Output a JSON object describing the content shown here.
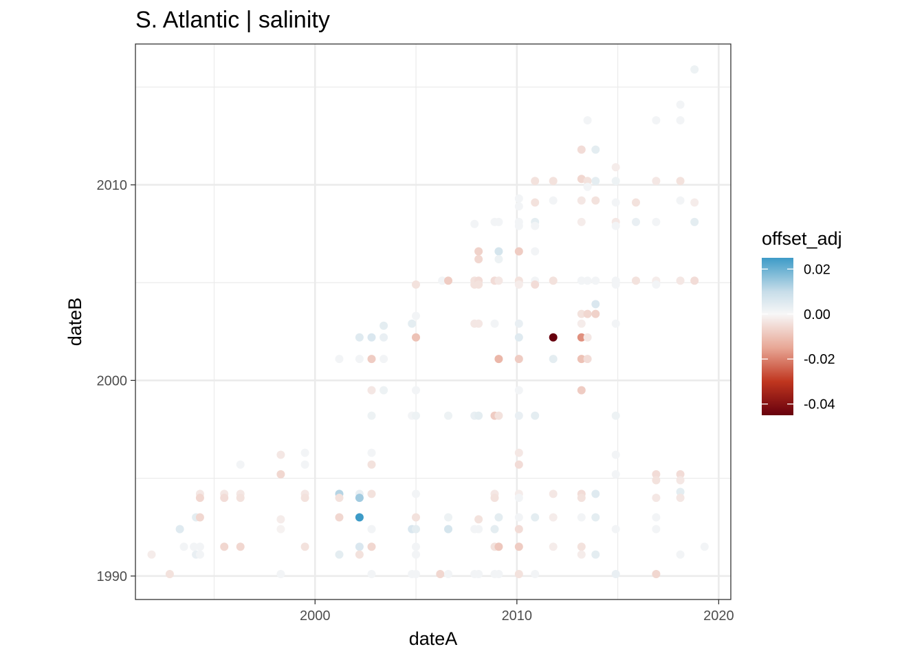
{
  "chart_data": {
    "type": "scatter",
    "title": "S. Atlantic | salinity",
    "xlabel": "dateA",
    "ylabel": "dateB",
    "x_ticks": [
      2000,
      2010,
      2020
    ],
    "y_ticks": [
      1990,
      2000,
      2010
    ],
    "xlim": [
      1991.1,
      2020.6
    ],
    "ylim": [
      1988.8,
      2017.2
    ],
    "grid": true,
    "legend": {
      "title": "offset_adj",
      "position": "right",
      "ticks": [
        0.02,
        0.0,
        -0.02,
        -0.04
      ],
      "tick_labels": [
        "0.02",
        "0.00",
        "-0.02",
        "-0.04"
      ],
      "range": [
        -0.045,
        0.025
      ],
      "colors": [
        "#67000d",
        "#c0361f",
        "#e8a796",
        "#f7f7f7",
        "#c7dde9",
        "#3d9bc7"
      ],
      "color_stops": [
        -0.045,
        -0.03,
        -0.015,
        0.0,
        0.01,
        0.025
      ]
    },
    "points": [
      {
        "x": 1991.9,
        "y": 1991.1,
        "v": -0.002
      },
      {
        "x": 1992.8,
        "y": 1990.1,
        "v": -0.004
      },
      {
        "x": 1993.3,
        "y": 1992.4,
        "v": 0.005
      },
      {
        "x": 1993.5,
        "y": 1991.5,
        "v": 0.001
      },
      {
        "x": 1994.0,
        "y": 1991.5,
        "v": 0.001
      },
      {
        "x": 1994.1,
        "y": 1993.0,
        "v": 0.004
      },
      {
        "x": 1994.1,
        "y": 1991.1,
        "v": 0.003
      },
      {
        "x": 1994.3,
        "y": 1993.0,
        "v": -0.006
      },
      {
        "x": 1994.3,
        "y": 1991.1,
        "v": 0.001
      },
      {
        "x": 1994.3,
        "y": 1994.2,
        "v": -0.003
      },
      {
        "x": 1994.3,
        "y": 1994.0,
        "v": -0.006
      },
      {
        "x": 1994.3,
        "y": 1991.5,
        "v": 0.001
      },
      {
        "x": 1995.5,
        "y": 1994.2,
        "v": -0.003
      },
      {
        "x": 1995.5,
        "y": 1994.0,
        "v": -0.005
      },
      {
        "x": 1995.5,
        "y": 1991.5,
        "v": -0.006
      },
      {
        "x": 1996.3,
        "y": 1994.2,
        "v": -0.003
      },
      {
        "x": 1996.3,
        "y": 1994.0,
        "v": -0.004
      },
      {
        "x": 1996.3,
        "y": 1995.7,
        "v": 0.001
      },
      {
        "x": 1996.3,
        "y": 1991.5,
        "v": -0.006
      },
      {
        "x": 1998.3,
        "y": 1996.2,
        "v": -0.003
      },
      {
        "x": 1998.3,
        "y": 1995.2,
        "v": -0.006
      },
      {
        "x": 1998.3,
        "y": 1992.9,
        "v": -0.002
      },
      {
        "x": 1998.3,
        "y": 1992.4,
        "v": -0.001
      },
      {
        "x": 1998.3,
        "y": 1990.1,
        "v": 0.001
      },
      {
        "x": 1999.5,
        "y": 1996.3,
        "v": 0.001
      },
      {
        "x": 1999.5,
        "y": 1995.7,
        "v": 0.001
      },
      {
        "x": 1999.5,
        "y": 1994.2,
        "v": -0.003
      },
      {
        "x": 1999.5,
        "y": 1994.0,
        "v": -0.004
      },
      {
        "x": 1999.5,
        "y": 1991.5,
        "v": -0.004
      },
      {
        "x": 2001.2,
        "y": 2001.1,
        "v": 0.001
      },
      {
        "x": 2001.2,
        "y": 1994.2,
        "v": 0.012
      },
      {
        "x": 2001.2,
        "y": 1994.0,
        "v": -0.004
      },
      {
        "x": 2001.2,
        "y": 1993.0,
        "v": -0.006
      },
      {
        "x": 2001.2,
        "y": 1991.1,
        "v": 0.004
      },
      {
        "x": 2002.2,
        "y": 2002.2,
        "v": 0.005
      },
      {
        "x": 2002.2,
        "y": 2001.1,
        "v": 0.001
      },
      {
        "x": 2002.2,
        "y": 1994.2,
        "v": 0.003
      },
      {
        "x": 2002.2,
        "y": 1994.0,
        "v": 0.014
      },
      {
        "x": 2002.2,
        "y": 1993.0,
        "v": 0.025
      },
      {
        "x": 2002.2,
        "y": 1991.5,
        "v": 0.006
      },
      {
        "x": 2002.2,
        "y": 1991.1,
        "v": -0.004
      },
      {
        "x": 2002.8,
        "y": 2002.2,
        "v": 0.006
      },
      {
        "x": 2002.8,
        "y": 2001.1,
        "v": -0.008
      },
      {
        "x": 2002.8,
        "y": 1999.5,
        "v": -0.003
      },
      {
        "x": 2002.8,
        "y": 1998.2,
        "v": 0.002
      },
      {
        "x": 2002.8,
        "y": 1996.3,
        "v": 0.001
      },
      {
        "x": 2002.8,
        "y": 1995.7,
        "v": -0.004
      },
      {
        "x": 2002.8,
        "y": 1994.2,
        "v": -0.004
      },
      {
        "x": 2002.8,
        "y": 1992.4,
        "v": 0.001
      },
      {
        "x": 2002.8,
        "y": 1991.5,
        "v": -0.006
      },
      {
        "x": 2002.8,
        "y": 1990.1,
        "v": 0.001
      },
      {
        "x": 2003.4,
        "y": 2002.8,
        "v": 0.004
      },
      {
        "x": 2003.4,
        "y": 2002.2,
        "v": 0.003
      },
      {
        "x": 2003.4,
        "y": 2001.1,
        "v": 0.001
      },
      {
        "x": 2003.4,
        "y": 1999.5,
        "v": 0.002
      },
      {
        "x": 2004.8,
        "y": 2002.9,
        "v": 0.004
      },
      {
        "x": 2004.8,
        "y": 1998.2,
        "v": 0.001
      },
      {
        "x": 2004.8,
        "y": 1992.4,
        "v": 0.006
      },
      {
        "x": 2004.8,
        "y": 1990.1,
        "v": 0.001
      },
      {
        "x": 2005.0,
        "y": 2004.9,
        "v": -0.004
      },
      {
        "x": 2005.0,
        "y": 2003.3,
        "v": 0.001
      },
      {
        "x": 2005.0,
        "y": 2002.2,
        "v": -0.01
      },
      {
        "x": 2005.0,
        "y": 1999.5,
        "v": 0.001
      },
      {
        "x": 2005.0,
        "y": 1998.2,
        "v": 0.002
      },
      {
        "x": 2005.0,
        "y": 1994.2,
        "v": 0.001
      },
      {
        "x": 2005.0,
        "y": 1993.0,
        "v": -0.004
      },
      {
        "x": 2005.0,
        "y": 1992.4,
        "v": 0.004
      },
      {
        "x": 2005.0,
        "y": 1991.5,
        "v": 0.001
      },
      {
        "x": 2005.0,
        "y": 1991.1,
        "v": 0.001
      },
      {
        "x": 2005.0,
        "y": 1990.1,
        "v": 0.001
      },
      {
        "x": 2006.2,
        "y": 1990.1,
        "v": -0.006
      },
      {
        "x": 2006.3,
        "y": 2005.1,
        "v": 0.001
      },
      {
        "x": 2006.6,
        "y": 2005.1,
        "v": -0.008
      },
      {
        "x": 2006.6,
        "y": 1998.2,
        "v": 0.002
      },
      {
        "x": 2006.6,
        "y": 1993.0,
        "v": 0.002
      },
      {
        "x": 2006.6,
        "y": 1992.4,
        "v": 0.007
      },
      {
        "x": 2006.6,
        "y": 1990.1,
        "v": 0.001
      },
      {
        "x": 2007.9,
        "y": 2008.0,
        "v": 0.001
      },
      {
        "x": 2007.9,
        "y": 2005.1,
        "v": -0.004
      },
      {
        "x": 2007.9,
        "y": 2004.9,
        "v": -0.004
      },
      {
        "x": 2007.9,
        "y": 2002.9,
        "v": -0.003
      },
      {
        "x": 2007.9,
        "y": 1998.2,
        "v": 0.003
      },
      {
        "x": 2007.9,
        "y": 1992.4,
        "v": 0.001
      },
      {
        "x": 2007.9,
        "y": 1990.1,
        "v": 0.001
      },
      {
        "x": 2008.1,
        "y": 2006.6,
        "v": -0.007
      },
      {
        "x": 2008.1,
        "y": 2006.2,
        "v": -0.006
      },
      {
        "x": 2008.1,
        "y": 2005.1,
        "v": -0.005
      },
      {
        "x": 2008.1,
        "y": 2004.9,
        "v": -0.004
      },
      {
        "x": 2008.1,
        "y": 2002.9,
        "v": -0.003
      },
      {
        "x": 2008.1,
        "y": 1998.2,
        "v": 0.004
      },
      {
        "x": 2008.1,
        "y": 1992.9,
        "v": -0.004
      },
      {
        "x": 2008.1,
        "y": 1992.4,
        "v": 0.001
      },
      {
        "x": 2008.1,
        "y": 1990.1,
        "v": 0.001
      },
      {
        "x": 2008.9,
        "y": 2008.1,
        "v": 0.001
      },
      {
        "x": 2008.9,
        "y": 2005.1,
        "v": -0.005
      },
      {
        "x": 2008.9,
        "y": 2002.9,
        "v": 0.001
      },
      {
        "x": 2008.9,
        "y": 1998.2,
        "v": -0.008
      },
      {
        "x": 2008.9,
        "y": 1994.2,
        "v": -0.003
      },
      {
        "x": 2008.9,
        "y": 1994.0,
        "v": -0.004
      },
      {
        "x": 2008.9,
        "y": 1992.4,
        "v": 0.004
      },
      {
        "x": 2008.9,
        "y": 1991.5,
        "v": -0.004
      },
      {
        "x": 2008.9,
        "y": 1990.1,
        "v": 0.001
      },
      {
        "x": 2009.1,
        "y": 2008.1,
        "v": 0.001
      },
      {
        "x": 2009.1,
        "y": 2006.6,
        "v": 0.007
      },
      {
        "x": 2009.1,
        "y": 2006.2,
        "v": 0.002
      },
      {
        "x": 2009.1,
        "y": 2005.1,
        "v": -0.003
      },
      {
        "x": 2009.1,
        "y": 2001.1,
        "v": -0.012
      },
      {
        "x": 2009.1,
        "y": 1998.2,
        "v": -0.004
      },
      {
        "x": 2009.1,
        "y": 1993.0,
        "v": 0.004
      },
      {
        "x": 2009.1,
        "y": 1991.5,
        "v": -0.009
      },
      {
        "x": 2009.1,
        "y": 1990.1,
        "v": 0.001
      },
      {
        "x": 2010.1,
        "y": 2009.3,
        "v": 0.001
      },
      {
        "x": 2010.1,
        "y": 2008.9,
        "v": 0.001
      },
      {
        "x": 2010.1,
        "y": 2008.1,
        "v": 0.001
      },
      {
        "x": 2010.1,
        "y": 2007.9,
        "v": 0.001
      },
      {
        "x": 2010.1,
        "y": 2006.6,
        "v": -0.008
      },
      {
        "x": 2010.1,
        "y": 2005.1,
        "v": -0.004
      },
      {
        "x": 2010.1,
        "y": 2004.9,
        "v": -0.002
      },
      {
        "x": 2010.1,
        "y": 2002.9,
        "v": 0.003
      },
      {
        "x": 2010.1,
        "y": 2002.2,
        "v": 0.005
      },
      {
        "x": 2010.1,
        "y": 2001.1,
        "v": -0.008
      },
      {
        "x": 2010.1,
        "y": 1999.5,
        "v": 0.001
      },
      {
        "x": 2010.1,
        "y": 1998.2,
        "v": 0.003
      },
      {
        "x": 2010.1,
        "y": 1996.3,
        "v": -0.003
      },
      {
        "x": 2010.1,
        "y": 1995.7,
        "v": -0.005
      },
      {
        "x": 2010.1,
        "y": 1994.2,
        "v": -0.002
      },
      {
        "x": 2010.1,
        "y": 1994.0,
        "v": 0.001
      },
      {
        "x": 2010.1,
        "y": 1993.0,
        "v": 0.001
      },
      {
        "x": 2010.1,
        "y": 1992.4,
        "v": -0.005
      },
      {
        "x": 2010.1,
        "y": 1991.5,
        "v": -0.008
      },
      {
        "x": 2010.1,
        "y": 1990.1,
        "v": -0.004
      },
      {
        "x": 2010.9,
        "y": 2010.2,
        "v": -0.004
      },
      {
        "x": 2010.9,
        "y": 2009.1,
        "v": -0.004
      },
      {
        "x": 2010.9,
        "y": 2008.1,
        "v": 0.004
      },
      {
        "x": 2010.9,
        "y": 2007.9,
        "v": 0.001
      },
      {
        "x": 2010.9,
        "y": 2006.6,
        "v": 0.001
      },
      {
        "x": 2010.9,
        "y": 2005.1,
        "v": 0.001
      },
      {
        "x": 2010.9,
        "y": 2004.9,
        "v": -0.005
      },
      {
        "x": 2010.9,
        "y": 1998.2,
        "v": 0.004
      },
      {
        "x": 2010.9,
        "y": 1993.0,
        "v": 0.004
      },
      {
        "x": 2010.9,
        "y": 1990.1,
        "v": 0.001
      },
      {
        "x": 2011.8,
        "y": 2010.2,
        "v": -0.004
      },
      {
        "x": 2011.8,
        "y": 2009.2,
        "v": 0.001
      },
      {
        "x": 2011.8,
        "y": 2005.1,
        "v": -0.004
      },
      {
        "x": 2011.8,
        "y": 2002.2,
        "v": -0.045
      },
      {
        "x": 2011.8,
        "y": 2001.1,
        "v": 0.004
      },
      {
        "x": 2011.8,
        "y": 1994.2,
        "v": -0.003
      },
      {
        "x": 2011.8,
        "y": 1993.0,
        "v": -0.002
      },
      {
        "x": 2011.8,
        "y": 1991.5,
        "v": -0.002
      },
      {
        "x": 2013.2,
        "y": 2011.8,
        "v": -0.005
      },
      {
        "x": 2013.2,
        "y": 2010.3,
        "v": -0.006
      },
      {
        "x": 2013.2,
        "y": 2009.2,
        "v": -0.003
      },
      {
        "x": 2013.2,
        "y": 2008.1,
        "v": -0.002
      },
      {
        "x": 2013.2,
        "y": 2005.1,
        "v": 0.001
      },
      {
        "x": 2013.2,
        "y": 2003.4,
        "v": -0.004
      },
      {
        "x": 2013.2,
        "y": 2002.9,
        "v": -0.002
      },
      {
        "x": 2013.2,
        "y": 2002.2,
        "v": -0.018
      },
      {
        "x": 2013.2,
        "y": 2001.1,
        "v": -0.01
      },
      {
        "x": 2013.2,
        "y": 1999.5,
        "v": -0.008
      },
      {
        "x": 2013.2,
        "y": 1994.2,
        "v": -0.005
      },
      {
        "x": 2013.2,
        "y": 1994.0,
        "v": -0.004
      },
      {
        "x": 2013.2,
        "y": 1993.0,
        "v": 0.001
      },
      {
        "x": 2013.2,
        "y": 1991.5,
        "v": -0.004
      },
      {
        "x": 2013.2,
        "y": 1991.1,
        "v": -0.002
      },
      {
        "x": 2013.5,
        "y": 2013.3,
        "v": 0.001
      },
      {
        "x": 2013.5,
        "y": 2010.2,
        "v": -0.004
      },
      {
        "x": 2013.5,
        "y": 2009.9,
        "v": 0.001
      },
      {
        "x": 2013.5,
        "y": 2005.1,
        "v": 0.001
      },
      {
        "x": 2013.5,
        "y": 2003.4,
        "v": -0.006
      },
      {
        "x": 2013.5,
        "y": 2002.2,
        "v": -0.003
      },
      {
        "x": 2013.5,
        "y": 2001.1,
        "v": -0.005
      },
      {
        "x": 2013.9,
        "y": 2011.8,
        "v": 0.004
      },
      {
        "x": 2013.9,
        "y": 2010.2,
        "v": 0.004
      },
      {
        "x": 2013.9,
        "y": 2009.2,
        "v": -0.004
      },
      {
        "x": 2013.9,
        "y": 2005.1,
        "v": 0.001
      },
      {
        "x": 2013.9,
        "y": 2003.9,
        "v": 0.006
      },
      {
        "x": 2013.9,
        "y": 2003.4,
        "v": -0.007
      },
      {
        "x": 2013.9,
        "y": 1994.2,
        "v": 0.005
      },
      {
        "x": 2013.9,
        "y": 1993.0,
        "v": 0.004
      },
      {
        "x": 2013.9,
        "y": 1991.1,
        "v": 0.004
      },
      {
        "x": 2014.9,
        "y": 2010.9,
        "v": -0.002
      },
      {
        "x": 2014.9,
        "y": 2010.2,
        "v": 0.002
      },
      {
        "x": 2014.9,
        "y": 2009.1,
        "v": 0.001
      },
      {
        "x": 2014.9,
        "y": 2008.1,
        "v": -0.003
      },
      {
        "x": 2014.9,
        "y": 2007.9,
        "v": 0.001
      },
      {
        "x": 2014.9,
        "y": 2005.1,
        "v": 0.001
      },
      {
        "x": 2014.9,
        "y": 2004.9,
        "v": 0.001
      },
      {
        "x": 2014.9,
        "y": 2002.9,
        "v": 0.001
      },
      {
        "x": 2014.9,
        "y": 1998.2,
        "v": 0.002
      },
      {
        "x": 2014.9,
        "y": 1996.2,
        "v": 0.001
      },
      {
        "x": 2014.9,
        "y": 1995.2,
        "v": 0.001
      },
      {
        "x": 2014.9,
        "y": 1992.4,
        "v": 0.001
      },
      {
        "x": 2014.9,
        "y": 1990.1,
        "v": 0.003
      },
      {
        "x": 2015.9,
        "y": 2009.1,
        "v": -0.004
      },
      {
        "x": 2015.9,
        "y": 2008.1,
        "v": 0.003
      },
      {
        "x": 2015.9,
        "y": 2005.1,
        "v": -0.004
      },
      {
        "x": 2016.9,
        "y": 2013.3,
        "v": 0.001
      },
      {
        "x": 2016.9,
        "y": 2010.2,
        "v": -0.003
      },
      {
        "x": 2016.9,
        "y": 2008.1,
        "v": 0.001
      },
      {
        "x": 2016.9,
        "y": 2005.1,
        "v": -0.002
      },
      {
        "x": 2016.9,
        "y": 2004.9,
        "v": 0.001
      },
      {
        "x": 2016.9,
        "y": 1995.2,
        "v": -0.005
      },
      {
        "x": 2016.9,
        "y": 1994.9,
        "v": -0.004
      },
      {
        "x": 2016.9,
        "y": 1994.0,
        "v": -0.003
      },
      {
        "x": 2016.9,
        "y": 1993.0,
        "v": 0.001
      },
      {
        "x": 2016.9,
        "y": 1992.4,
        "v": 0.001
      },
      {
        "x": 2016.9,
        "y": 1990.1,
        "v": -0.006
      },
      {
        "x": 2018.1,
        "y": 2014.1,
        "v": 0.001
      },
      {
        "x": 2018.1,
        "y": 2013.3,
        "v": 0.001
      },
      {
        "x": 2018.1,
        "y": 2010.2,
        "v": -0.004
      },
      {
        "x": 2018.1,
        "y": 2009.2,
        "v": 0.001
      },
      {
        "x": 2018.1,
        "y": 2005.1,
        "v": -0.003
      },
      {
        "x": 2018.1,
        "y": 1995.2,
        "v": -0.005
      },
      {
        "x": 2018.1,
        "y": 1994.9,
        "v": -0.003
      },
      {
        "x": 2018.1,
        "y": 1994.3,
        "v": 0.004
      },
      {
        "x": 2018.1,
        "y": 1994.0,
        "v": -0.003
      },
      {
        "x": 2018.1,
        "y": 1991.1,
        "v": 0.001
      },
      {
        "x": 2018.8,
        "y": 2015.9,
        "v": 0.002
      },
      {
        "x": 2018.8,
        "y": 2009.1,
        "v": -0.002
      },
      {
        "x": 2018.8,
        "y": 2008.1,
        "v": 0.004
      },
      {
        "x": 2018.8,
        "y": 2005.1,
        "v": -0.005
      },
      {
        "x": 2019.3,
        "y": 1991.5,
        "v": 0.001
      }
    ]
  }
}
